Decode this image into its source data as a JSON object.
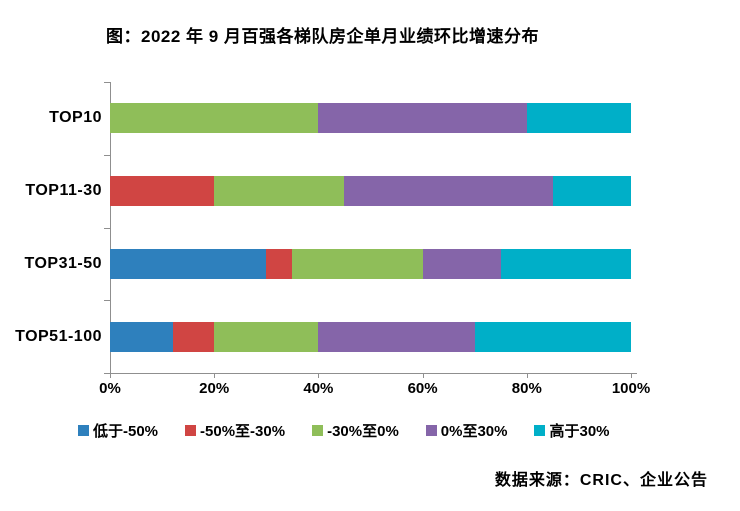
{
  "title": "图：2022 年 9 月百强各梯队房企单月业绩环比增速分布",
  "source": "数据来源：CRIC、企业公告",
  "colors": {
    "axis": "#8f8f8f",
    "text": "#000000"
  },
  "chart_data": {
    "type": "bar",
    "orientation": "horizontal",
    "stacked": true,
    "title": "图：2022 年 9 月百强各梯队房企单月业绩环比增速分布",
    "categories": [
      "TOP10",
      "TOP11-30",
      "TOP31-50",
      "TOP51-100"
    ],
    "series": [
      {
        "name": "低于-50%",
        "color": "#2E80BD",
        "values": [
          0,
          0,
          30,
          12
        ]
      },
      {
        "name": "-50%至-30%",
        "color": "#D04543",
        "values": [
          0,
          20,
          5,
          8
        ]
      },
      {
        "name": "-30%至0%",
        "color": "#8FBE59",
        "values": [
          40,
          25,
          25,
          20
        ]
      },
      {
        "name": "0%至30%",
        "color": "#8565A9",
        "values": [
          40,
          40,
          15,
          30
        ]
      },
      {
        "name": "高于30%",
        "color": "#00AFC8",
        "values": [
          20,
          15,
          25,
          30
        ]
      }
    ],
    "x_ticks": [
      "0%",
      "20%",
      "40%",
      "60%",
      "80%",
      "100%"
    ],
    "xlim": [
      0,
      100
    ],
    "grid": false,
    "legend_position": "bottom",
    "source": "数据来源：CRIC、企业公告"
  }
}
